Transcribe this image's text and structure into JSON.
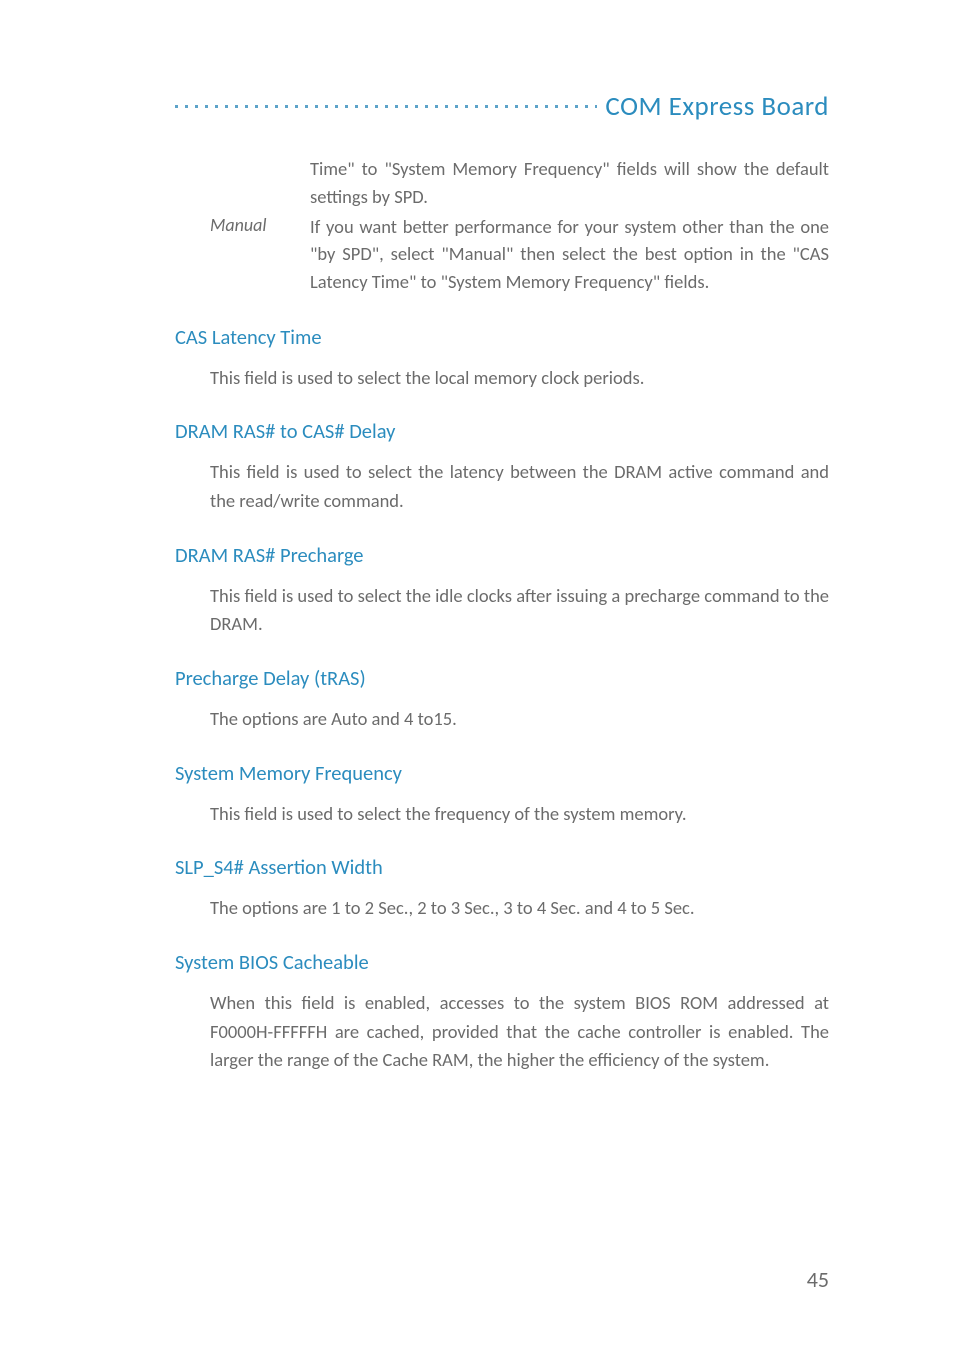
{
  "header": {
    "title": "COM Express Board"
  },
  "intro": {
    "line1": "Time\" to \"System Memory Frequency\" fields will show the default settings by SPD.",
    "manual_label": "Manual",
    "manual_text": "If you want better performance for your system other than the one \"by SPD\", select \"Manual\" then select the best option in the \"CAS Latency Time\" to \"System Memory Frequency\" fields."
  },
  "sections": [
    {
      "title": "CAS Latency Time",
      "body": "This field is used to select the local memory clock periods."
    },
    {
      "title": "DRAM RAS# to CAS# Delay",
      "body": "This field is used to select the latency between the DRAM active command and the read/write command."
    },
    {
      "title": "DRAM RAS# Precharge",
      "body": "This field is used to select the idle clocks after issuing a precharge command to the DRAM."
    },
    {
      "title": "Precharge Delay (tRAS)",
      "body": "The options are Auto and 4 to15."
    },
    {
      "title": "System Memory Frequency",
      "body": "This field is used to select the frequency of the system memory."
    },
    {
      "title": "SLP_S4# Assertion Width",
      "body": "The options are 1 to 2 Sec., 2 to 3 Sec., 3 to 4 Sec. and 4 to 5 Sec."
    },
    {
      "title": "System BIOS Cacheable",
      "body": "When this field is enabled, accesses to the system BIOS ROM addressed at F0000H-FFFFFH are cached, provided that the cache controller is enabled. The larger the range of the Cache RAM, the higher the efficiency of the system."
    }
  ],
  "page_number": "45",
  "colors": {
    "heading_blue": "#2b8cbe",
    "dot_blue": "#5da3c9",
    "body_gray": "#6b6b6b",
    "background": "#ffffff"
  },
  "typography": {
    "header_fontsize": 27,
    "section_title_fontsize": 20.5,
    "body_fontsize": 18.5,
    "page_number_fontsize": 22
  }
}
